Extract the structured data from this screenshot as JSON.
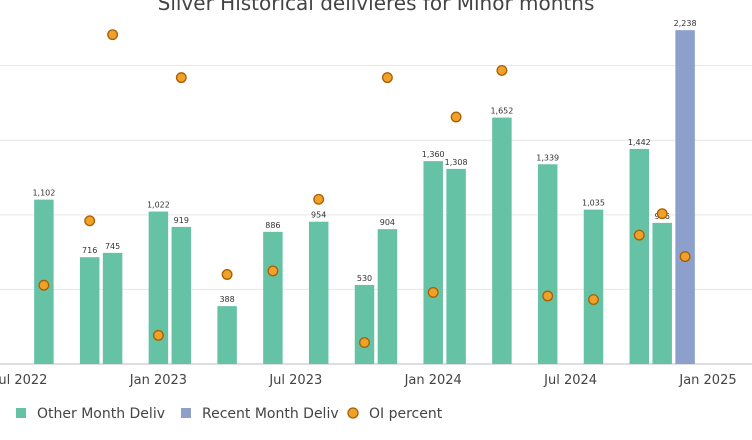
{
  "chart_data": {
    "type": "bar",
    "title": "Silver Historical delivieres for Minor months",
    "xlabel": "",
    "ylabel": "",
    "ylim": [
      0,
      2400
    ],
    "y2lim": [
      0,
      1
    ],
    "grid": true,
    "legend_position": "bottom",
    "x_tick_labels": [
      "Jul 2022",
      "Jan 2023",
      "Jul 2023",
      "Jan 2024",
      "Jul 2024",
      "Jan 2025"
    ],
    "colors": {
      "other": "#66c2a5",
      "recent": "#8da0cb",
      "oi_fill": "#f0a12a",
      "oi_stroke": "#a85f00"
    },
    "series": [
      {
        "name": "Other Month Deliv",
        "kind": "bar",
        "x": [
          "2022-08",
          "2022-10",
          "2022-11",
          "2023-01",
          "2023-02",
          "2023-04",
          "2023-06",
          "2023-08",
          "2023-10",
          "2023-11",
          "2024-01",
          "2024-02",
          "2024-04",
          "2024-06",
          "2024-08",
          "2024-10",
          "2024-11"
        ],
        "values": [
          1102,
          716,
          745,
          1022,
          919,
          388,
          886,
          954,
          530,
          904,
          1360,
          1308,
          1652,
          1339,
          1035,
          1442,
          946
        ],
        "labels": [
          "1,102",
          "716",
          "745",
          "1,022",
          "919",
          "388",
          "886",
          "954",
          "530",
          "904",
          "1,360",
          "1,308",
          "1,652",
          "1,339",
          "1,035",
          "1,442",
          "946"
        ]
      },
      {
        "name": "Recent Month Deliv",
        "kind": "bar",
        "x": [
          "2024-12"
        ],
        "values": [
          2238
        ],
        "labels": [
          "2,238"
        ]
      },
      {
        "name": "OI percent",
        "kind": "scatter",
        "x": [
          "2022-08",
          "2022-10",
          "2022-11",
          "2023-01",
          "2023-02",
          "2023-04",
          "2023-06",
          "2023-08",
          "2023-10",
          "2023-11",
          "2024-01",
          "2024-02",
          "2024-04",
          "2024-06",
          "2024-08",
          "2024-10",
          "2024-11",
          "2024-12"
        ],
        "values": [
          0.22,
          0.4,
          0.92,
          0.08,
          0.8,
          0.25,
          0.26,
          0.46,
          0.06,
          0.8,
          0.2,
          0.69,
          0.82,
          0.19,
          0.18,
          0.36,
          0.42,
          0.3
        ]
      }
    ]
  }
}
